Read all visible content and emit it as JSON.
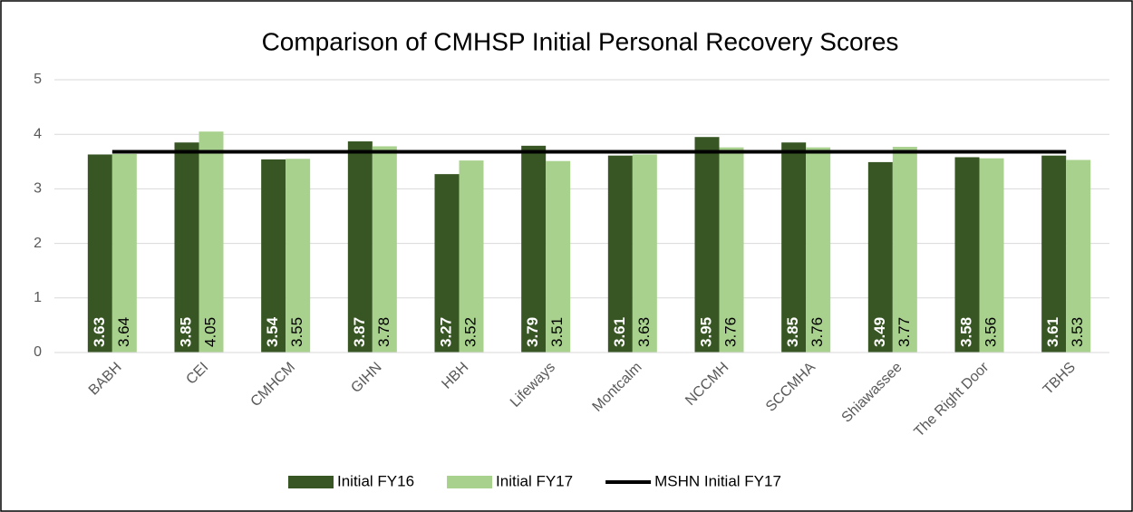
{
  "chart_data": {
    "type": "bar",
    "title": "Comparison of CMHSP Initial Personal Recovery Scores",
    "categories": [
      "BABH",
      "CEI",
      "CMHCM",
      "GIHN",
      "HBH",
      "Lifeways",
      "Montcalm",
      "NCCMH",
      "SCCMHA",
      "Shiawassee",
      "The Right Door",
      "TBHS"
    ],
    "series": [
      {
        "name": "Initial FY16",
        "color": "#375623",
        "values": [
          3.63,
          3.85,
          3.54,
          3.87,
          3.27,
          3.79,
          3.61,
          3.95,
          3.85,
          3.49,
          3.58,
          3.61
        ]
      },
      {
        "name": "Initial FY17",
        "color": "#a9d18e",
        "values": [
          3.64,
          4.05,
          3.55,
          3.78,
          3.52,
          3.51,
          3.63,
          3.76,
          3.76,
          3.77,
          3.56,
          3.53
        ]
      },
      {
        "name": "MSHN Initial FY17",
        "type": "line",
        "color": "#000000",
        "values": [
          3.68,
          3.68,
          3.68,
          3.68,
          3.68,
          3.68,
          3.68,
          3.68,
          3.68,
          3.68,
          3.68,
          3.68
        ]
      }
    ],
    "ylim": [
      0,
      5
    ],
    "yticks": [
      0,
      1,
      2,
      3,
      4,
      5
    ],
    "grid": true,
    "legend": "bottom"
  }
}
